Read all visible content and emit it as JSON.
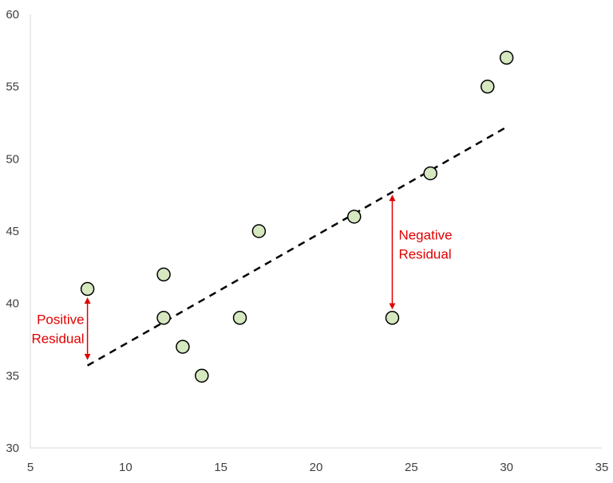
{
  "chart_data": {
    "type": "scatter",
    "title": "",
    "xlabel": "",
    "ylabel": "",
    "xlim": [
      5,
      35
    ],
    "ylim": [
      30,
      60
    ],
    "x_ticks": [
      5,
      10,
      15,
      20,
      25,
      30,
      35
    ],
    "y_ticks": [
      30,
      35,
      40,
      45,
      50,
      55,
      60
    ],
    "grid": false,
    "legend": "none",
    "series": [
      {
        "points": [
          {
            "x": 8,
            "y": 41
          },
          {
            "x": 12,
            "y": 42
          },
          {
            "x": 12,
            "y": 39
          },
          {
            "x": 13,
            "y": 37
          },
          {
            "x": 14,
            "y": 35
          },
          {
            "x": 16,
            "y": 39
          },
          {
            "x": 17,
            "y": 45
          },
          {
            "x": 22,
            "y": 46
          },
          {
            "x": 24,
            "y": 39
          },
          {
            "x": 26,
            "y": 49
          },
          {
            "x": 29,
            "y": 55
          },
          {
            "x": 30,
            "y": 57
          }
        ],
        "marker_fill": "#d5e8c0",
        "marker_stroke": "#000000"
      }
    ],
    "trendline": {
      "x": [
        8,
        30
      ],
      "y": [
        35.7,
        52.2
      ],
      "style": "dashed",
      "color": "#000000"
    },
    "annotations": [
      {
        "lines": [
          "Positive",
          "Residual"
        ],
        "color": "#e00000",
        "arrow_x": 8,
        "arrow_y": [
          40.2,
          36.3
        ]
      },
      {
        "lines": [
          "Negative",
          "Residual"
        ],
        "color": "#e00000",
        "arrow_x": 24,
        "arrow_y": [
          47.3,
          39.8
        ]
      }
    ],
    "axis_color": "#d9d9d9"
  }
}
